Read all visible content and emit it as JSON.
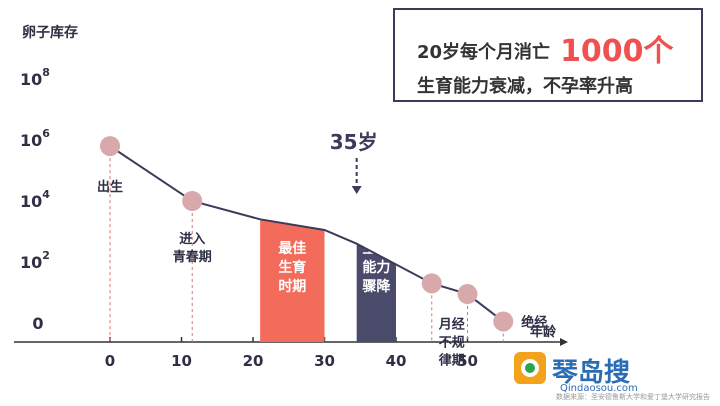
{
  "y_axis_label": "卵子库存",
  "info": {
    "line1_prefix": "20岁每个月消亡",
    "line1_highlight": "1000个",
    "line2": "生育能力衰减，不孕率升高",
    "highlight_color": "#f0504f"
  },
  "chart_data": {
    "type": "line",
    "xlabel": "年龄",
    "x_ticks": [
      0,
      10,
      20,
      30,
      40,
      50
    ],
    "y_ticks": [
      "0",
      "10^2",
      "10^4",
      "10^6",
      "10^8"
    ],
    "y_scale": "log",
    "xlim": [
      -14,
      56
    ],
    "series": [
      {
        "points": [
          {
            "x": 0,
            "y": 5.8
          },
          {
            "x": 11.5,
            "y": 4.0
          },
          {
            "x": 21,
            "y": 3.4
          },
          {
            "x": 30,
            "y": 3.05
          },
          {
            "x": 34.5,
            "y": 2.6
          },
          {
            "x": 45,
            "y": 1.3
          },
          {
            "x": 50,
            "y": 0.95
          },
          {
            "x": 55,
            "y": 0.05
          }
        ]
      }
    ],
    "markers": [
      {
        "x": 0,
        "y": 5.8,
        "label": "出生"
      },
      {
        "x": 11.5,
        "y": 4.0,
        "label": "进入\n青春期"
      },
      {
        "x": 45,
        "y": 1.3,
        "label": "月经\n不规\n律期"
      },
      {
        "x": 50,
        "y": 0.95,
        "label": ""
      },
      {
        "x": 55,
        "y": 0.05,
        "label": "绝经"
      }
    ],
    "bands": [
      {
        "x0": 21,
        "x1": 30,
        "label": "最佳\n生育\n时期",
        "color": "#f36b5a"
      },
      {
        "x0": 34.5,
        "x1": 40,
        "label": "生育\n能力\n骤降",
        "color": "#4a4a6a"
      }
    ],
    "annotation": {
      "x": 34.5,
      "label": "35岁"
    },
    "colors": {
      "line": "#3d3a5a",
      "marker": "#d7a9ab",
      "guide": "#e07070"
    }
  },
  "footer": "数据来源：圣安德鲁斯大学和爱丁堡大学研究报告",
  "watermark": {
    "name": "琴岛搜",
    "url": "Qindaosou.com"
  }
}
